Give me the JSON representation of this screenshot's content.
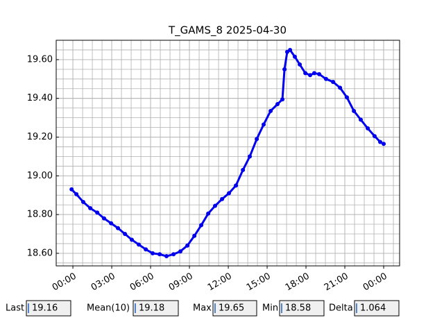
{
  "chart_data": {
    "type": "line",
    "title": "T_GAMS_8 2025-04-30",
    "x": [
      -0.1,
      0.27,
      0.8,
      1.34,
      1.88,
      2.41,
      2.95,
      3.48,
      4.02,
      4.55,
      5.09,
      5.63,
      6.16,
      6.7,
      7.23,
      7.77,
      8.3,
      8.84,
      9.38,
      9.91,
      10.45,
      10.98,
      11.52,
      12.05,
      12.59,
      13.13,
      13.66,
      14.2,
      14.73,
      15.27,
      15.8,
      16.18,
      16.34,
      16.55,
      16.77,
      17.14,
      17.52,
      17.95,
      18.32,
      18.64,
      19.02,
      19.55,
      20.09,
      20.63,
      21.16,
      21.7,
      22.23,
      22.77,
      23.3,
      23.73,
      24.0
    ],
    "series": [
      {
        "color": "#0000ee",
        "values": [
          18.93,
          18.905,
          18.865,
          18.833,
          18.81,
          18.78,
          18.755,
          18.73,
          18.7,
          18.67,
          18.645,
          18.62,
          18.6,
          18.595,
          18.585,
          18.595,
          18.61,
          18.64,
          18.69,
          18.745,
          18.805,
          18.845,
          18.88,
          18.91,
          18.95,
          19.03,
          19.1,
          19.19,
          19.265,
          19.335,
          19.37,
          19.395,
          19.55,
          19.64,
          19.65,
          19.615,
          19.575,
          19.53,
          19.52,
          19.53,
          19.525,
          19.5,
          19.485,
          19.455,
          19.405,
          19.335,
          19.29,
          19.245,
          19.205,
          19.175,
          19.165
        ]
      }
    ],
    "xlim": [
      -1.29,
      25.23
    ],
    "ylim": [
      18.535,
      19.7
    ],
    "xticks": [
      {
        "value": 0,
        "label": "00:00"
      },
      {
        "value": 3,
        "label": "03:00"
      },
      {
        "value": 6,
        "label": "06:00"
      },
      {
        "value": 9,
        "label": "09:00"
      },
      {
        "value": 12,
        "label": "12:00"
      },
      {
        "value": 15,
        "label": "15:00"
      },
      {
        "value": 18,
        "label": "18:00"
      },
      {
        "value": 21,
        "label": "21:00"
      },
      {
        "value": 24,
        "label": "00:00"
      }
    ],
    "yticks": [
      {
        "value": 18.6,
        "label": "18.60"
      },
      {
        "value": 18.8,
        "label": "18.80"
      },
      {
        "value": 19.0,
        "label": "19.00"
      },
      {
        "value": 19.2,
        "label": "19.20"
      },
      {
        "value": 19.4,
        "label": "19.40"
      },
      {
        "value": 19.6,
        "label": "19.60"
      }
    ],
    "grid": true,
    "minor_grid_divisions": 4
  },
  "widgets": [
    {
      "label": "Last",
      "value": "19.16"
    },
    {
      "label": "Mean(10)",
      "value": "19.18"
    },
    {
      "label": "Max",
      "value": "19.65"
    },
    {
      "label": "Min",
      "value": "18.58"
    },
    {
      "label": "Delta",
      "value": "1.064"
    }
  ]
}
